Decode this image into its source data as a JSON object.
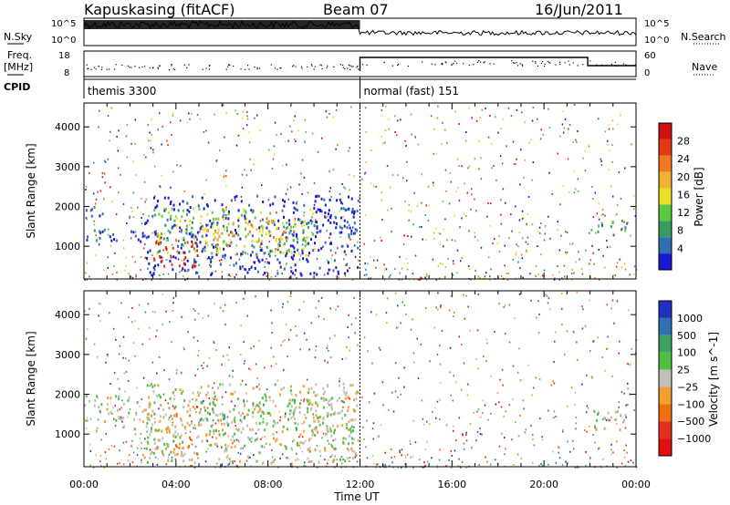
{
  "header": {
    "station": "Kapuskasing (fitACF)",
    "beam": "Beam 07",
    "date": "16/Jun/2011"
  },
  "top_panel": {
    "left_label_sky": "N.Sky",
    "left_label_freq": "Freq.",
    "left_label_freq_unit": "[MHz]",
    "left_label_cpid": "CPID",
    "right_label_search": "N.Search",
    "right_label_nave": "Nave",
    "sky_ticks": [
      "10^5",
      "10^0"
    ],
    "freq_ticks": [
      "18",
      "8"
    ],
    "search_ticks": [
      "10^5",
      "10^0"
    ],
    "nave_ticks": [
      "60",
      "0"
    ],
    "cpid_segments": [
      {
        "label": "themis 3300",
        "start_hour": 0,
        "end_hour": 12
      },
      {
        "label": "normal (fast) 151",
        "start_hour": 12,
        "end_hour": 24
      }
    ]
  },
  "colors": {
    "power": [
      "#1818d0",
      "#2f6fb0",
      "#3a9a60",
      "#5ac840",
      "#e8e020",
      "#f0b030",
      "#f07820",
      "#e03a10",
      "#d01010"
    ],
    "velocity": [
      "#2030c0",
      "#3070b0",
      "#40a060",
      "#50c040",
      "#c0c0b8",
      "#f0a030",
      "#f07010",
      "#e03020",
      "#e01010"
    ]
  },
  "chart_data": [
    {
      "type": "heatmap",
      "name": "power",
      "ylabel": "Slant Range [km]",
      "xlabel": "",
      "ylim": [
        180,
        4600
      ],
      "xlim_hours": [
        0,
        24
      ],
      "y_ticks": [
        "1000",
        "2000",
        "3000",
        "4000"
      ],
      "colorbar_label": "Power [dB]",
      "colorbar_ticks": [
        "4",
        "8",
        "12",
        "16",
        "20",
        "24",
        "28"
      ],
      "regions": [
        {
          "t0": 0.0,
          "t1": 0.9,
          "r0": 1150,
          "r1": 2100,
          "level": 1
        },
        {
          "t0": 0.9,
          "t1": 2.6,
          "r0": 1100,
          "r1": 1500,
          "level": 0
        },
        {
          "t0": 2.6,
          "t1": 11.9,
          "r0": 300,
          "r1": 2300,
          "level": 0
        },
        {
          "t0": 3.0,
          "t1": 10.0,
          "r0": 800,
          "r1": 2000,
          "level": 3
        },
        {
          "t0": 3.0,
          "t1": 5.0,
          "r0": 500,
          "r1": 1300,
          "level": 7
        },
        {
          "t0": 5.2,
          "t1": 9.2,
          "r0": 1000,
          "r1": 1800,
          "level": 5
        },
        {
          "t0": 10.0,
          "t1": 11.8,
          "r0": 1300,
          "r1": 2300,
          "level": 0
        },
        {
          "t0": 21.9,
          "t1": 23.6,
          "r0": 1200,
          "r1": 1700,
          "level": 2
        }
      ]
    },
    {
      "type": "heatmap",
      "name": "velocity",
      "ylabel": "Slant Range [km]",
      "xlabel": "Time UT",
      "ylim": [
        180,
        4600
      ],
      "xlim_hours": [
        0,
        24
      ],
      "x_ticks": [
        "00:00",
        "04:00",
        "08:00",
        "12:00",
        "16:00",
        "20:00",
        "00:00"
      ],
      "y_ticks": [
        "1000",
        "2000",
        "3000",
        "4000"
      ],
      "colorbar_label": "Velocity [m s^-1]",
      "colorbar_ticks": [
        "1000",
        "500",
        "100",
        "25",
        "−25",
        "−100",
        "−500",
        "−1000"
      ],
      "regions": [
        {
          "t0": 0.0,
          "t1": 3.0,
          "r0": 1100,
          "r1": 2000,
          "level": 4
        },
        {
          "t0": 2.6,
          "t1": 11.9,
          "r0": 300,
          "r1": 2300,
          "level": 4
        },
        {
          "t0": 3.0,
          "t1": 5.0,
          "r0": 500,
          "r1": 1700,
          "level": 5
        },
        {
          "t0": 5.0,
          "t1": 9.5,
          "r0": 1100,
          "r1": 1900,
          "level": 3
        },
        {
          "t0": 9.5,
          "t1": 11.8,
          "r0": 600,
          "r1": 2300,
          "level": 4
        },
        {
          "t0": 21.9,
          "t1": 23.6,
          "r0": 1100,
          "r1": 1700,
          "level": 4
        }
      ]
    }
  ]
}
